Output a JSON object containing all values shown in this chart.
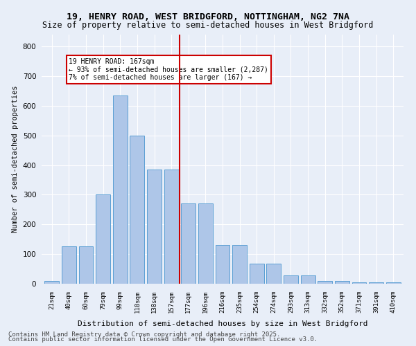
{
  "title1": "19, HENRY ROAD, WEST BRIDGFORD, NOTTINGHAM, NG2 7NA",
  "title2": "Size of property relative to semi-detached houses in West Bridgford",
  "xlabel": "Distribution of semi-detached houses by size in West Bridgford",
  "ylabel": "Number of semi-detached properties",
  "footnote1": "Contains HM Land Registry data © Crown copyright and database right 2025.",
  "footnote2": "Contains public sector information licensed under the Open Government Licence v3.0.",
  "bar_labels": [
    "21sqm",
    "40sqm",
    "60sqm",
    "79sqm",
    "99sqm",
    "118sqm",
    "138sqm",
    "157sqm",
    "177sqm",
    "196sqm",
    "216sqm",
    "235sqm",
    "254sqm",
    "274sqm",
    "293sqm",
    "313sqm",
    "332sqm",
    "352sqm",
    "371sqm",
    "391sqm",
    "410sqm"
  ],
  "bar_values": [
    10,
    125,
    125,
    300,
    635,
    500,
    385,
    385,
    270,
    270,
    130,
    130,
    68,
    68,
    28,
    28,
    10,
    10,
    5,
    5,
    5
  ],
  "bar_color": "#aec6e8",
  "bar_edge_color": "#5a9fd4",
  "vline_x": 7.5,
  "vline_color": "#cc0000",
  "annotation_text": "19 HENRY ROAD: 167sqm\n← 93% of semi-detached houses are smaller (2,287)\n7% of semi-detached houses are larger (167) →",
  "annotation_box_color": "#cc0000",
  "ylim": [
    0,
    840
  ],
  "yticks": [
    0,
    100,
    200,
    300,
    400,
    500,
    600,
    700,
    800
  ],
  "bg_color": "#e8eef8",
  "plot_bg_color": "#e8eef8",
  "grid_color": "#ffffff"
}
